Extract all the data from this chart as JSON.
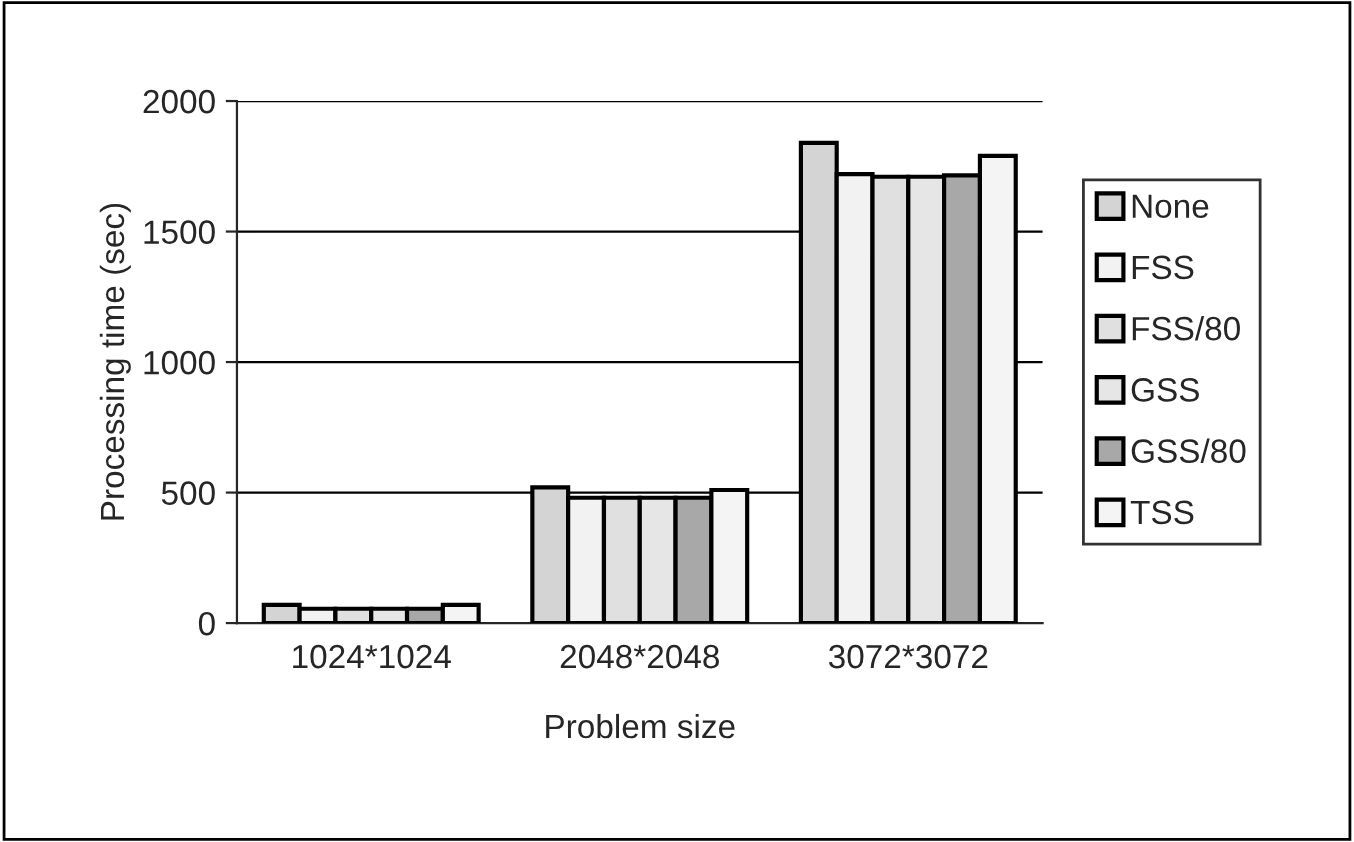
{
  "chart_data": {
    "type": "bar",
    "xlabel": "Problem size",
    "ylabel": "Processing time (sec)",
    "categories": [
      "1024*1024",
      "2048*2048",
      "3072*3072"
    ],
    "series": [
      {
        "name": "None",
        "color": "#d4d4d4",
        "values": [
          70,
          520,
          1840
        ]
      },
      {
        "name": "FSS",
        "color": "#f2f2f2",
        "values": [
          55,
          480,
          1720
        ]
      },
      {
        "name": "FSS/80",
        "color": "#e0e0e0",
        "values": [
          55,
          480,
          1710
        ]
      },
      {
        "name": "GSS",
        "color": "#e6e6e6",
        "values": [
          55,
          480,
          1710
        ]
      },
      {
        "name": "GSS/80",
        "color": "#a8a8a8",
        "values": [
          55,
          480,
          1715
        ]
      },
      {
        "name": "TSS",
        "color": "#f4f4f4",
        "values": [
          70,
          510,
          1790
        ]
      }
    ],
    "ylim": [
      0,
      2000
    ],
    "yticks": [
      0,
      500,
      1000,
      1500,
      2000
    ],
    "grid": "y",
    "legend": "right"
  }
}
